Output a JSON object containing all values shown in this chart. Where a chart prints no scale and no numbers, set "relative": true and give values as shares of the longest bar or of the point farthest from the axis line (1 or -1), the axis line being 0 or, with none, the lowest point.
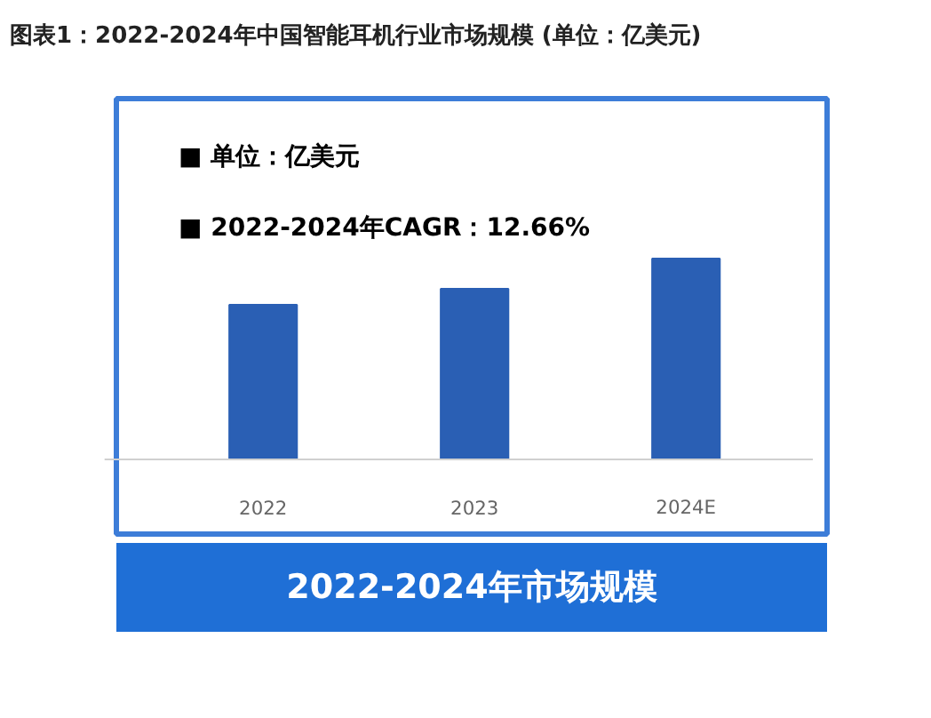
{
  "chart_data": {
    "type": "bar",
    "title": "图表1：2022-2024年中国智能耳机行业市场规模 (单位：亿美元)",
    "categories": [
      "2022",
      "2023",
      "2024E"
    ],
    "values": [
      0.77,
      0.85,
      1.0
    ],
    "color": "#2a5fb4",
    "relative": true,
    "annotations": [
      "■  单位：亿美元",
      "■  2022-2024年CAGR：12.66%",
      "2022-2024年市场规模"
    ]
  }
}
